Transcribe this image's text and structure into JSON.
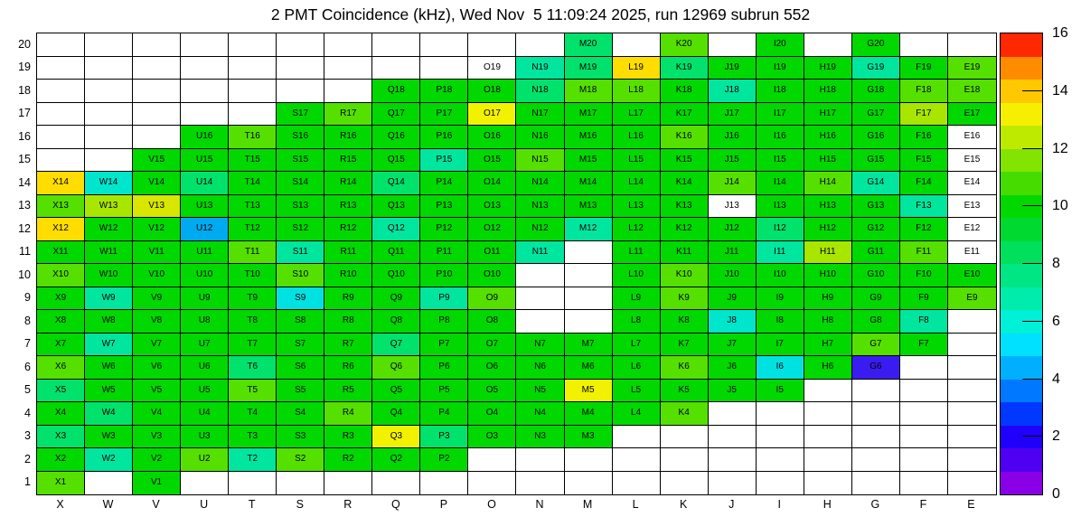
{
  "title": "2 PMT Coincidence (kHz), Wed Nov  5 11:09:24 2025, run 12969 subrun 552",
  "chart_data": {
    "type": "heatmap",
    "title": "2 PMT Coincidence (kHz), Wed Nov  5 11:09:24 2025, run 12969 subrun 552",
    "run": "12969",
    "subrun": "552",
    "timestamp": "Wed Nov  5 11:09:24 2025",
    "columns": [
      "X",
      "W",
      "V",
      "U",
      "T",
      "S",
      "R",
      "Q",
      "P",
      "O",
      "N",
      "M",
      "L",
      "K",
      "J",
      "I",
      "H",
      "G",
      "F",
      "E"
    ],
    "rows": [
      20,
      19,
      18,
      17,
      16,
      15,
      14,
      13,
      12,
      11,
      10,
      9,
      8,
      7,
      6,
      5,
      4,
      3,
      2,
      1
    ],
    "cell_color_tokens_legend": "- = empty white (no label); 0 = white cell with label; other letters = filled color classes (see palette)",
    "cell_colors": [
      "-----------e-k-g-g--",
      "---------0tedegggtgk",
      "-------gggekkgtgggkk",
      "-----gkggyggggggggmg",
      "---gkggggggggkggggg0",
      "--ggggggtgkgggggggg0",
      "dcgegggeggggggkgktg0",
      "kmvggggggggggg0gggt0",
      "dggugggtgggtgggeggg0",
      "ggggktggggt-gggtmgk0",
      "kggggkgggg--gkgggggg",
      "gtgggqggtk--gkgggggk",
      "gggggggggg--ggcgggt-",
      "gtgggggegggggggggkg-",
      "kgggeggkgggggkgqgb--",
      "egggkggggggygggg----",
      "geggggkggggggk------",
      "eggggggyeggg--------",
      "gtgktkggg-----------",
      "k-g-----------------"
    ],
    "palette": {
      "g": "#00d800",
      "k": "#55e000",
      "m": "#a8e600",
      "v": "#d8e600",
      "y": "#f2f200",
      "d": "#ffdd00",
      "e": "#00e26c",
      "t": "#00e69e",
      "c": "#00e6cc",
      "q": "#00e2e2",
      "u": "#00aaf0",
      "b": "#3b1cf0"
    },
    "value_estimates_khz": {
      "g": 9.5,
      "k": 10.5,
      "m": 11.3,
      "v": 11.7,
      "y": 12.3,
      "d": 13,
      "e": 8.3,
      "t": 7.5,
      "c": 6.8,
      "q": 6.3,
      "u": 4.8,
      "b": 1.5,
      "0": null,
      "-": null
    },
    "colorbar": {
      "min": 0,
      "max": 16,
      "tick_values": [
        0,
        2,
        4,
        6,
        8,
        10,
        12,
        14,
        16
      ],
      "colors_bottom_to_top": [
        "#8a00e6",
        "#5000f0",
        "#2000fa",
        "#0038ff",
        "#0078ff",
        "#00b0ff",
        "#00e0ff",
        "#00f0d8",
        "#00ecac",
        "#00e684",
        "#00e05c",
        "#00da30",
        "#00d800",
        "#46dc00",
        "#82e400",
        "#beea00",
        "#f6f000",
        "#ffc800",
        "#ff8c00",
        "#ff2800"
      ]
    },
    "legend_position": "right",
    "grid": true
  }
}
